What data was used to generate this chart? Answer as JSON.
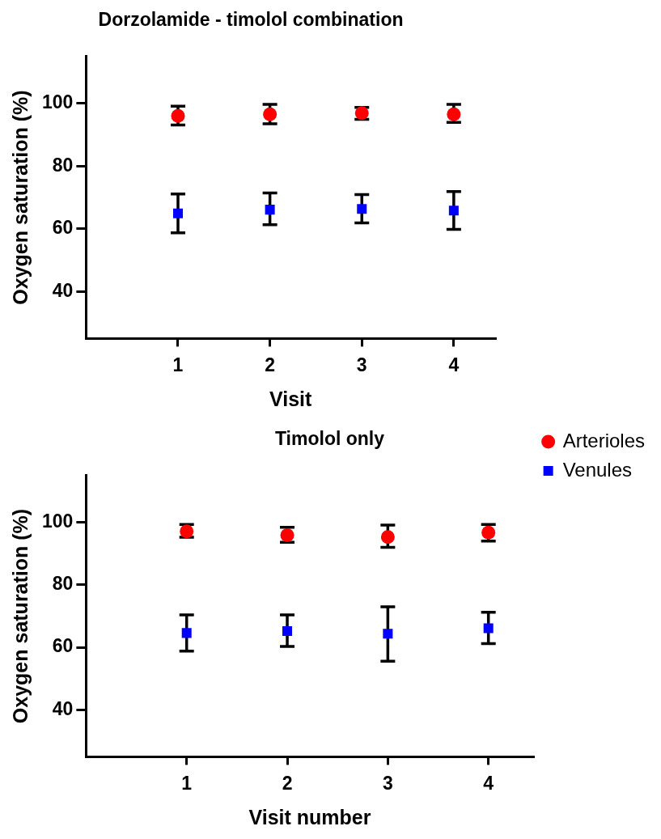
{
  "chart_data": [
    {
      "type": "scatter",
      "title": "Dorzolamide - timolol combination",
      "xlabel": "Visit",
      "ylabel": "Oxygen saturation (%)",
      "categories": [
        "1",
        "2",
        "3",
        "4"
      ],
      "ylim": [
        25,
        115
      ],
      "yticks": [
        40,
        60,
        80,
        100
      ],
      "legend": false,
      "series": [
        {
          "color": "#ff0000",
          "marker": "circle",
          "values": [
            96.0,
            96.5,
            96.9,
            96.5
          ],
          "errors": [
            [
              93.1,
              99.1
            ],
            [
              93.5,
              99.7
            ],
            [
              94.9,
              98.7
            ],
            [
              93.9,
              99.7
            ]
          ]
        },
        {
          "color": "#0000ff",
          "marker": "square",
          "values": [
            64.9,
            66.1,
            66.3,
            65.8
          ],
          "errors": [
            [
              58.7,
              71.1
            ],
            [
              61.3,
              71.4
            ],
            [
              61.9,
              70.9
            ],
            [
              59.8,
              71.9
            ]
          ]
        }
      ]
    },
    {
      "type": "scatter",
      "title": "Timolol only",
      "xlabel": "Visit number",
      "ylabel": "Oxygen saturation (%)",
      "categories": [
        "1",
        "2",
        "3",
        "4"
      ],
      "ylim": [
        25,
        115
      ],
      "yticks": [
        40,
        60,
        80,
        100
      ],
      "legend": "right",
      "series": [
        {
          "name": "Arterioles",
          "color": "#ff0000",
          "marker": "circle",
          "values": [
            97.1,
            95.9,
            95.3,
            96.7
          ],
          "errors": [
            [
              95.2,
              99.3
            ],
            [
              93.6,
              98.4
            ],
            [
              92.0,
              99.1
            ],
            [
              94.0,
              99.3
            ]
          ]
        },
        {
          "name": "Venules",
          "color": "#0000ff",
          "marker": "square",
          "values": [
            64.6,
            65.2,
            64.4,
            66.1
          ],
          "errors": [
            [
              58.8,
              70.4
            ],
            [
              60.3,
              70.4
            ],
            [
              55.6,
              73.0
            ],
            [
              61.2,
              71.2
            ]
          ]
        }
      ]
    }
  ]
}
